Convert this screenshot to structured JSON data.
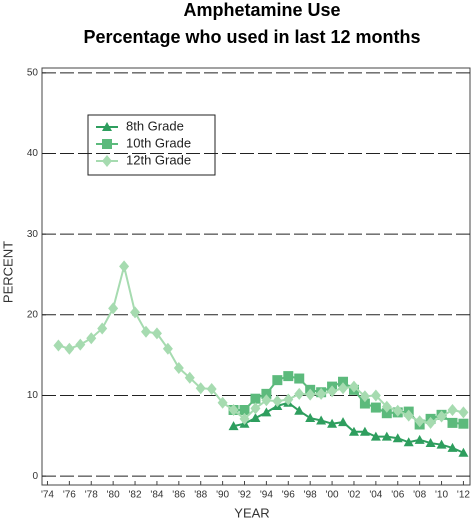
{
  "chart_data": {
    "type": "line",
    "title": "Amphetamine Use",
    "subtitle": "Percentage who used in last 12 months",
    "x_label": "YEAR",
    "y_label": "PERCENT",
    "xlim": [
      1973.5,
      2012.6
    ],
    "ylim": [
      -1.1,
      50.6
    ],
    "xticks": [
      {
        "value": 1974,
        "label": "'74"
      },
      {
        "value": 1976,
        "label": "'76"
      },
      {
        "value": 1978,
        "label": "'78"
      },
      {
        "value": 1980,
        "label": "'80"
      },
      {
        "value": 1982,
        "label": "'82"
      },
      {
        "value": 1984,
        "label": "'84"
      },
      {
        "value": 1986,
        "label": "'86"
      },
      {
        "value": 1988,
        "label": "'88"
      },
      {
        "value": 1990,
        "label": "'90"
      },
      {
        "value": 1992,
        "label": "'92"
      },
      {
        "value": 1994,
        "label": "'94"
      },
      {
        "value": 1996,
        "label": "'96"
      },
      {
        "value": 1998,
        "label": "'98"
      },
      {
        "value": 2000,
        "label": "'00"
      },
      {
        "value": 2002,
        "label": "'02"
      },
      {
        "value": 2004,
        "label": "'04"
      },
      {
        "value": 2006,
        "label": "'06"
      },
      {
        "value": 2008,
        "label": "'08"
      },
      {
        "value": 2010,
        "label": "'10"
      },
      {
        "value": 2012,
        "label": "'12"
      }
    ],
    "yticks": [
      0,
      10,
      20,
      30,
      40,
      50
    ],
    "grid": true,
    "series": [
      {
        "name": "8th Grade",
        "color": "#2e9e5e",
        "marker": "triangle",
        "x": [
          1991,
          1992,
          1993,
          1994,
          1995,
          1996,
          1997,
          1998,
          1999,
          2000,
          2001,
          2002,
          2003,
          2004,
          2005,
          2006,
          2007,
          2008,
          2009,
          2010,
          2011,
          2012
        ],
        "values": [
          6.2,
          6.5,
          7.2,
          7.9,
          8.7,
          9.1,
          8.1,
          7.2,
          6.9,
          6.5,
          6.7,
          5.5,
          5.5,
          4.9,
          4.9,
          4.7,
          4.2,
          4.5,
          4.1,
          3.9,
          3.5,
          2.9
        ]
      },
      {
        "name": "10th Grade",
        "color": "#5cba7c",
        "marker": "square",
        "x": [
          1991,
          1992,
          1993,
          1994,
          1995,
          1996,
          1997,
          1998,
          1999,
          2000,
          2001,
          2002,
          2003,
          2004,
          2005,
          2006,
          2007,
          2008,
          2009,
          2010,
          2011,
          2012
        ],
        "values": [
          8.2,
          8.2,
          9.6,
          10.2,
          11.9,
          12.4,
          12.1,
          10.7,
          10.4,
          11.1,
          11.7,
          10.7,
          9.0,
          8.5,
          7.8,
          7.9,
          8.0,
          6.4,
          7.1,
          7.6,
          6.6,
          6.5
        ]
      },
      {
        "name": "12th Grade",
        "color": "#a6dbb0",
        "marker": "diamond",
        "x": [
          1975,
          1976,
          1977,
          1978,
          1979,
          1980,
          1981,
          1982,
          1983,
          1984,
          1985,
          1986,
          1987,
          1988,
          1989,
          1990,
          1991,
          1992,
          1993,
          1994,
          1995,
          1996,
          1997,
          1998,
          1999,
          2000,
          2001,
          2002,
          2003,
          2004,
          2005,
          2006,
          2007,
          2008,
          2009,
          2010,
          2011,
          2012
        ],
        "values": [
          16.2,
          15.8,
          16.3,
          17.1,
          18.3,
          20.8,
          26.0,
          20.3,
          17.9,
          17.7,
          15.8,
          13.4,
          12.2,
          10.9,
          10.8,
          9.1,
          8.2,
          7.1,
          8.4,
          9.4,
          9.3,
          9.5,
          10.2,
          10.1,
          10.2,
          10.5,
          10.9,
          11.1,
          9.9,
          10.0,
          8.6,
          8.1,
          7.5,
          6.8,
          6.6,
          7.4,
          8.2,
          7.9
        ]
      }
    ]
  }
}
